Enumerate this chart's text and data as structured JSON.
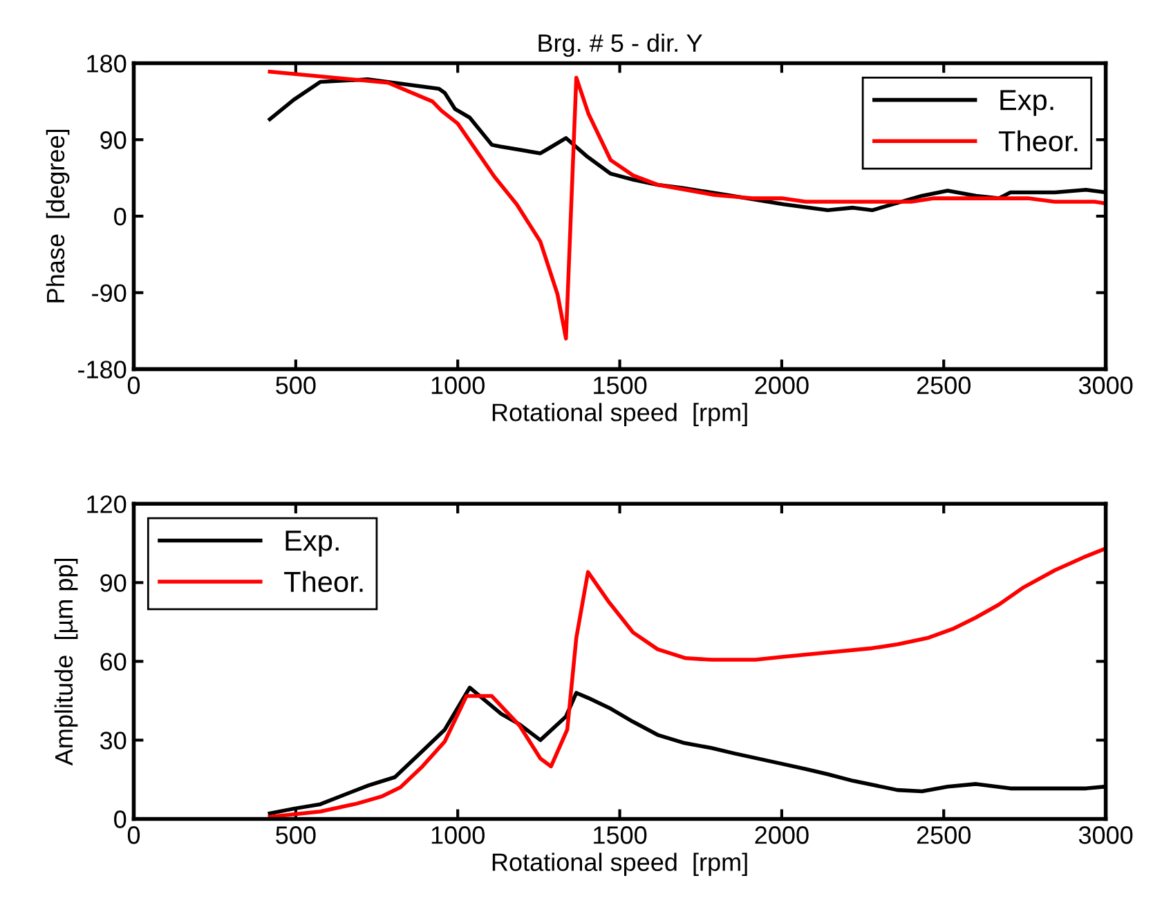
{
  "chart_data": [
    {
      "type": "line",
      "title": "Brg. # 5 - dir. Y",
      "xlabel": "Rotational speed  [rpm]",
      "ylabel": "Phase  [degree]",
      "xlim": [
        0,
        3000
      ],
      "xticks": [
        0,
        500,
        1000,
        1500,
        2000,
        2500,
        3000
      ],
      "ylim": [
        -180,
        180
      ],
      "yticks": [
        -180,
        -90,
        0,
        90,
        180
      ],
      "grid": false,
      "legend": "top right",
      "series": [
        {
          "name": "Exp.",
          "color": "#000000",
          "x": [
            420,
            494,
            576,
            722,
            882,
            942,
            960,
            992,
            1037,
            1105,
            1130,
            1255,
            1282,
            1334,
            1400,
            1472,
            1541,
            1617,
            1696,
            1831,
            2006,
            2142,
            2220,
            2279,
            2433,
            2512,
            2600,
            2670,
            2706,
            2843,
            2939,
            3000
          ],
          "values": [
            114,
            137,
            158,
            161,
            153,
            150,
            145,
            126,
            116,
            84,
            82,
            74,
            80,
            92,
            70,
            50,
            43,
            37,
            33,
            25,
            14,
            7,
            10,
            7,
            24,
            30,
            24,
            21,
            28,
            28,
            31,
            28
          ]
        },
        {
          "name": "Theor.",
          "color": "#ff0000",
          "x": [
            420,
            785,
            922,
            950,
            1000,
            1114,
            1182,
            1255,
            1308,
            1334,
            1366,
            1404,
            1472,
            1541,
            1617,
            1792,
            1910,
            2000,
            2074,
            2400,
            2470,
            2760,
            2843,
            2965,
            3000
          ],
          "values": [
            170,
            157,
            135,
            124,
            109,
            46,
            14,
            -30,
            -92,
            -144,
            163,
            120,
            66,
            48,
            37,
            25,
            21,
            21,
            17,
            17,
            21,
            21,
            17,
            17,
            15
          ]
        }
      ]
    },
    {
      "type": "line",
      "xlabel": "Rotational speed  [rpm]",
      "ylabel": "Amplitude  [µm pp]",
      "xlim": [
        0,
        3000
      ],
      "xticks": [
        0,
        500,
        1000,
        1500,
        2000,
        2500,
        3000
      ],
      "ylim": [
        0,
        120
      ],
      "yticks": [
        0,
        30,
        60,
        90,
        120
      ],
      "grid": false,
      "legend": "top left",
      "series": [
        {
          "name": "Exp.",
          "color": "#000000",
          "x": [
            420,
            494,
            576,
            650,
            725,
            806,
            901,
            960,
            1037,
            1134,
            1191,
            1255,
            1334,
            1366,
            1404,
            1472,
            1541,
            1617,
            1696,
            1783,
            1851,
            2000,
            2074,
            2142,
            2220,
            2357,
            2433,
            2512,
            2600,
            2706,
            2939,
            3000
          ],
          "values": [
            2.1,
            3.9,
            5.6,
            9.2,
            12.8,
            15.9,
            27,
            34,
            50,
            40,
            36,
            30,
            39,
            48,
            46,
            42,
            37,
            32,
            29,
            27,
            25,
            21,
            19,
            17,
            14.5,
            11,
            10.5,
            12.3,
            13.3,
            11.6,
            11.6,
            12.3
          ]
        },
        {
          "name": "Theor.",
          "color": "#ff0000",
          "x": [
            420,
            576,
            688,
            764,
            823,
            891,
            960,
            1027,
            1105,
            1191,
            1255,
            1288,
            1338,
            1366,
            1402,
            1464,
            1541,
            1617,
            1704,
            1783,
            1919,
            2000,
            2142,
            2279,
            2357,
            2453,
            2531,
            2598,
            2670,
            2744,
            2843,
            2939,
            3000
          ],
          "values": [
            0.8,
            2.8,
            5.8,
            8.5,
            12,
            20,
            29.5,
            46.8,
            46.8,
            35.5,
            23,
            20,
            34,
            69,
            94,
            83,
            71,
            64.6,
            61.2,
            60.6,
            60.6,
            61.7,
            63.4,
            65,
            66.5,
            69,
            72.5,
            76.6,
            81.6,
            88,
            94.7,
            100,
            103
          ]
        }
      ]
    }
  ]
}
